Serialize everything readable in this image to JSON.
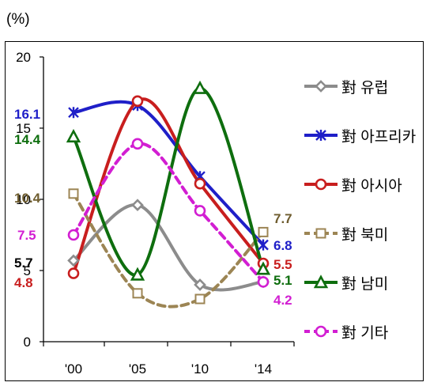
{
  "unit_label": "(%)",
  "chart_data": {
    "type": "line",
    "title": "",
    "xlabel": "",
    "ylabel": "",
    "categories": [
      "'00",
      "'05",
      "'10",
      "'14"
    ],
    "ylim": [
      0,
      20
    ],
    "yticks": [
      0,
      5,
      10,
      15,
      20
    ],
    "grid": false,
    "smooth": true,
    "legend_position": "right",
    "series": [
      {
        "name": "對 유럽",
        "color": "#8c8c8c",
        "marker": "diamond",
        "dashed": false,
        "values": [
          5.7,
          9.6,
          4.0,
          4.2
        ],
        "labels": [
          "5.7",
          "",
          "",
          ""
        ],
        "label_colors": [
          "#000000"
        ]
      },
      {
        "name": "對 아프리카",
        "color": "#1f1fc8",
        "marker": "star",
        "dashed": false,
        "values": [
          16.1,
          16.6,
          11.6,
          6.8
        ],
        "labels": [
          "16.1",
          "",
          "",
          "6.8"
        ],
        "label_colors": [
          "#1f1fc8",
          "",
          "",
          "#1f1fc8"
        ]
      },
      {
        "name": "對 아시아",
        "color": "#c81e1e",
        "marker": "circle",
        "dashed": false,
        "values": [
          4.8,
          16.9,
          11.1,
          5.5
        ],
        "labels": [
          "4.8",
          "",
          "",
          "5.5"
        ],
        "label_colors": [
          "#c81e1e",
          "",
          "",
          "#c81e1e"
        ]
      },
      {
        "name": "對 북미",
        "color": "#9c8554",
        "marker": "square",
        "dashed": true,
        "values": [
          10.4,
          3.4,
          3.0,
          7.7
        ],
        "labels": [
          "10.4",
          "",
          "",
          "7.7"
        ],
        "label_colors": [
          "#6e5c2e",
          "",
          "",
          "#6e5c2e"
        ]
      },
      {
        "name": "對 남미",
        "color": "#0e6e0e",
        "marker": "triangle",
        "dashed": false,
        "values": [
          14.4,
          4.7,
          17.8,
          5.1
        ],
        "labels": [
          "14.4",
          "",
          "",
          "5.1"
        ],
        "label_colors": [
          "#0e6e0e",
          "",
          "",
          "#0e6e0e"
        ]
      },
      {
        "name": "對 기타",
        "color": "#d21ed2",
        "marker": "circle",
        "dashed": true,
        "values": [
          7.5,
          13.9,
          9.2,
          4.2
        ],
        "labels": [
          "7.5",
          "",
          "",
          "4.2"
        ],
        "label_colors": [
          "#d21ed2",
          "",
          "",
          "#d21ed2"
        ]
      }
    ]
  }
}
